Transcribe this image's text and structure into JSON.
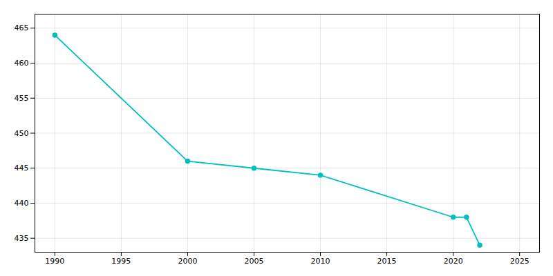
{
  "chart_data": {
    "type": "line",
    "x": [
      1990,
      2000,
      2005,
      2010,
      2020,
      2021,
      2022
    ],
    "values": [
      464,
      446,
      445,
      444,
      438,
      438,
      434
    ],
    "color": "#00BFBF",
    "marker": "o",
    "xlim": [
      1988.5,
      2026.5
    ],
    "ylim": [
      433,
      467
    ],
    "xticks": [
      1990,
      1995,
      2000,
      2005,
      2010,
      2015,
      2020,
      2025
    ],
    "yticks": [
      435,
      440,
      445,
      450,
      455,
      460,
      465
    ],
    "grid": true
  }
}
